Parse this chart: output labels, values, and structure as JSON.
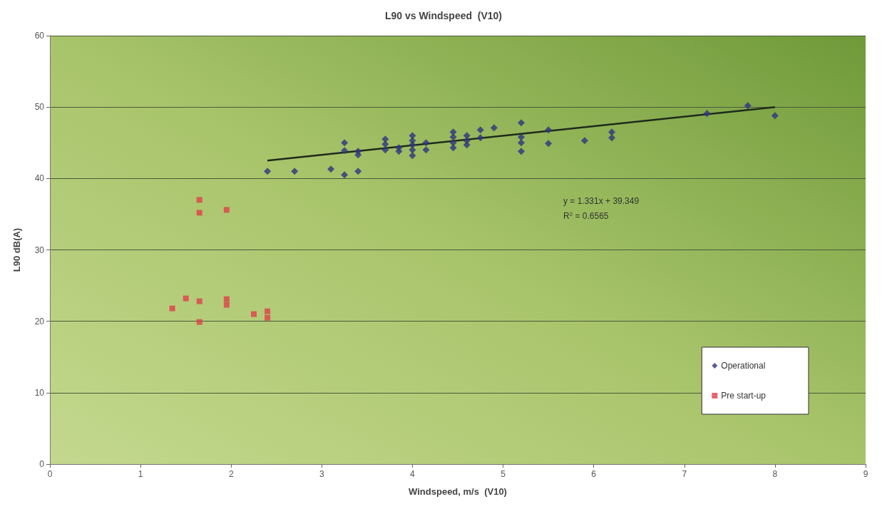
{
  "chart_data": {
    "type": "scatter",
    "title": "L90 vs Windspeed  (V10)",
    "xlabel": "Windspeed, m/s  (V10)",
    "ylabel": "L90 dB(A)",
    "xlim": [
      0,
      9
    ],
    "xticks": [
      0,
      1,
      2,
      3,
      4,
      5,
      6,
      7,
      8,
      9
    ],
    "ylim": [
      0,
      60
    ],
    "yticks": [
      0,
      10,
      20,
      30,
      40,
      50,
      60
    ],
    "grid": "y",
    "legend": "bottom right",
    "annotations": [
      "y = 1.331x + 39.349",
      "R$^{2}$ = 0.6565"
    ],
    "series": [
      {
        "name": "Operational",
        "color": "#2e3580",
        "marker": "diamond",
        "x": [
          2.4,
          2.7,
          3.1,
          3.25,
          3.25,
          3.25,
          3.4,
          3.4,
          3.4,
          3.7,
          3.7,
          3.7,
          3.85,
          3.85,
          4.0,
          4.0,
          4.0,
          4.0,
          4.0,
          4.15,
          4.15,
          4.45,
          4.45,
          4.45,
          4.45,
          4.6,
          4.6,
          4.6,
          4.75,
          4.75,
          4.9,
          5.2,
          5.2,
          5.2,
          5.2,
          5.5,
          5.5,
          5.9,
          6.2,
          6.2,
          7.25,
          7.7,
          8.0
        ],
        "values": [
          41,
          41,
          41.3,
          45,
          43.9,
          40.5,
          43.8,
          43.3,
          41,
          45.5,
          44.8,
          44,
          44.3,
          43.8,
          46,
          45.3,
          44.7,
          44,
          43.2,
          45,
          44,
          46.5,
          45.8,
          45,
          44.3,
          46,
          45.3,
          44.7,
          46.8,
          45.7,
          47.1,
          47.8,
          45.8,
          45,
          43.8,
          46.8,
          44.9,
          45.3,
          46.5,
          45.7,
          49.1,
          50.2,
          48.8
        ]
      },
      {
        "name": "Pre start-up",
        "color": "#e0404a",
        "marker": "square",
        "x": [
          1.65,
          1.65,
          1.95,
          1.35,
          1.5,
          1.65,
          1.95,
          1.95,
          1.65,
          2.25,
          2.4,
          2.4
        ],
        "values": [
          37,
          35.2,
          35.6,
          21.8,
          23.2,
          22.8,
          23.1,
          22.3,
          19.9,
          21,
          21.4,
          20.5
        ]
      },
      {
        "type": "line",
        "color": "#1f2a1a",
        "marker": "none",
        "x": [
          2.4,
          8.0
        ],
        "values": [
          42.5,
          50.0
        ]
      }
    ]
  }
}
